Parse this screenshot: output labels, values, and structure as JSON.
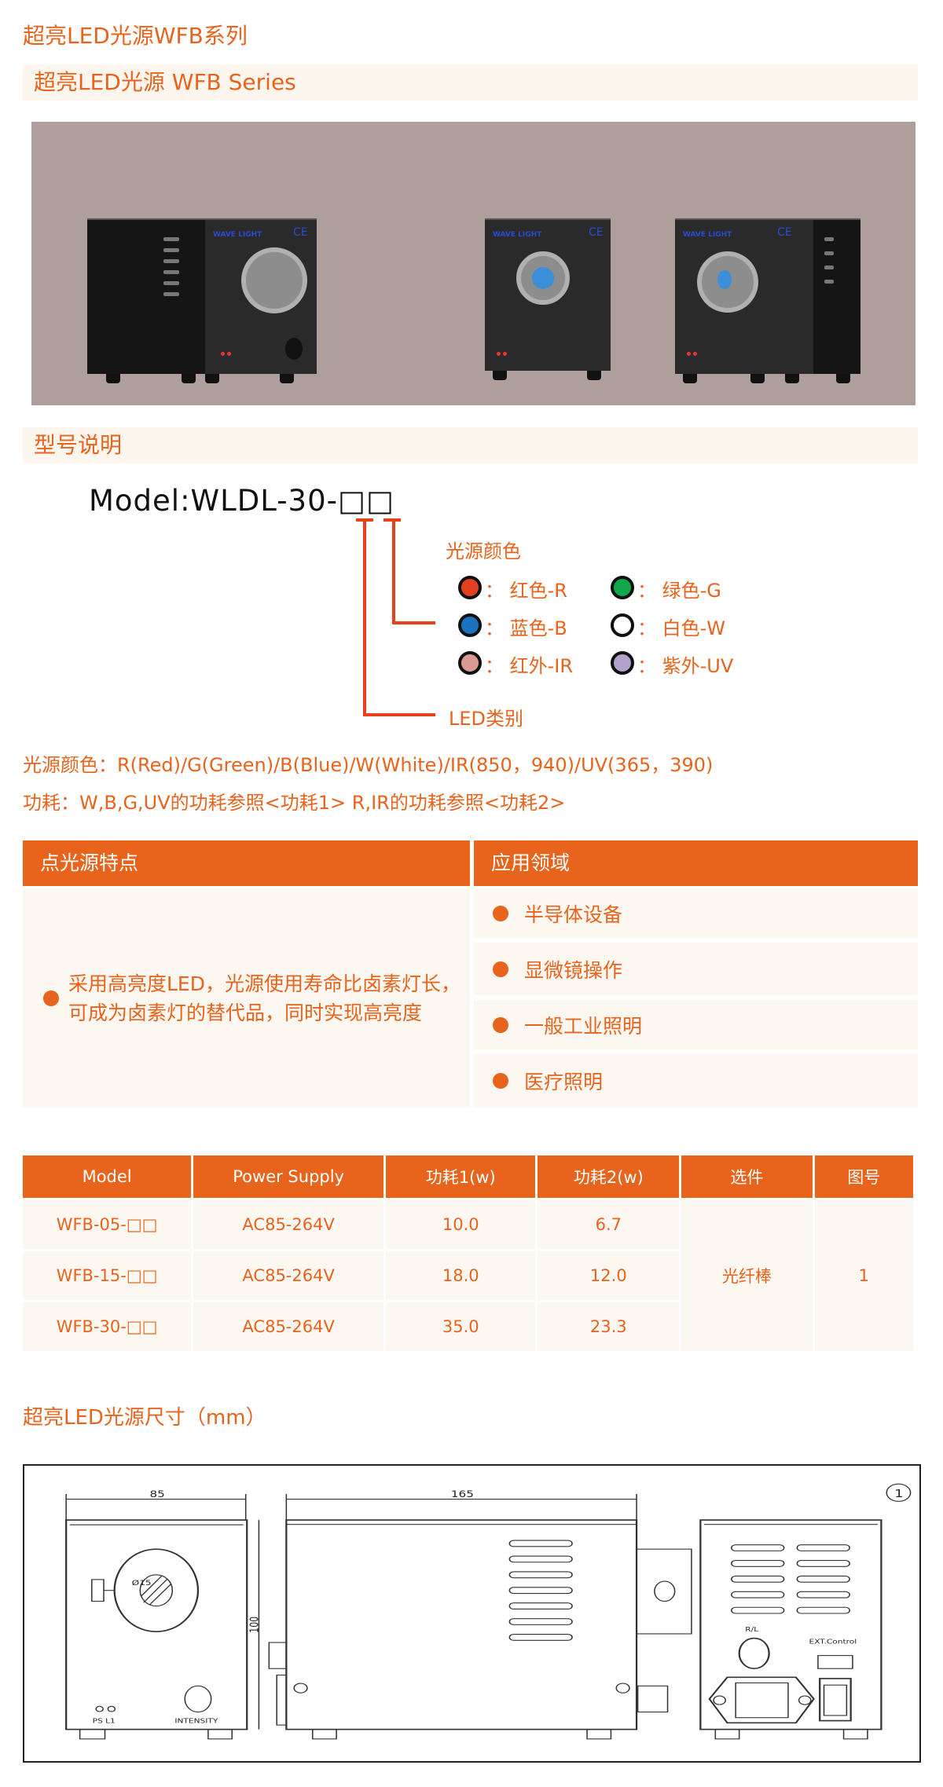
{
  "page_title": "超亮LED光源WFB系列",
  "series_banner": "超亮LED光源 WFB Series",
  "model_section_banner": "型号说明",
  "model_code": "Model:WLDL-30-□□",
  "color_legend": {
    "title": "光源颜色",
    "items": [
      {
        "label": "：  红色-R",
        "color": "#e2401f"
      },
      {
        "label": "：  绿色-G",
        "color": "#0fa84a"
      },
      {
        "label": "：  蓝色-B",
        "color": "#1a72c0"
      },
      {
        "label": "：  白色-W",
        "color": "#ffffff"
      },
      {
        "label": "：  红外-IR",
        "color": "#d99a94"
      },
      {
        "label": "：  紫外-UV",
        "color": "#b3a3cc"
      }
    ],
    "led_type_label": "LED类别"
  },
  "notes": {
    "colors": "光源颜色：R(Red)/G(Green)/B(Blue)/W(White)/IR(850，940)/UV(365，390)",
    "power": "功耗：W,B,G,UV的功耗参照<功耗1>   R,IR的功耗参照<功耗2>"
  },
  "features": {
    "header_left": "点光源特点",
    "header_right": "应用领域",
    "description": "采用高亮度LED，光源使用寿命比卤素灯长，可成为卤素灯的替代品，同时实现高亮度",
    "applications": [
      "半导体设备",
      "显微镜操作",
      "一般工业照明",
      "医疗照明"
    ]
  },
  "spec_table": {
    "headers": [
      "Model",
      "Power Supply",
      "功耗1(w)",
      "功耗2(w)",
      "选件",
      "图号"
    ],
    "rows": [
      [
        "WFB-05-□□",
        "AC85-264V",
        "10.0",
        "6.7"
      ],
      [
        "WFB-15-□□",
        "AC85-264V",
        "18.0",
        "12.0"
      ],
      [
        "WFB-30-□□",
        "AC85-264V",
        "35.0",
        "23.3"
      ]
    ],
    "option": "光纤棒",
    "figure_no": "1"
  },
  "dimensions": {
    "title": "超亮LED光源尺寸（mm）",
    "width": "85",
    "length": "165",
    "height": "100",
    "bore": "Ø15",
    "front_leds": "PS  L1",
    "front_knob": "INTENSITY",
    "rear_rl": "R/L",
    "rear_ext": "EXT.Control",
    "figure_mark": "1"
  },
  "colors": {
    "accent": "#e8641c",
    "banner_bg": "#fdf6ee",
    "photo_bg": "#ae9f9d"
  }
}
